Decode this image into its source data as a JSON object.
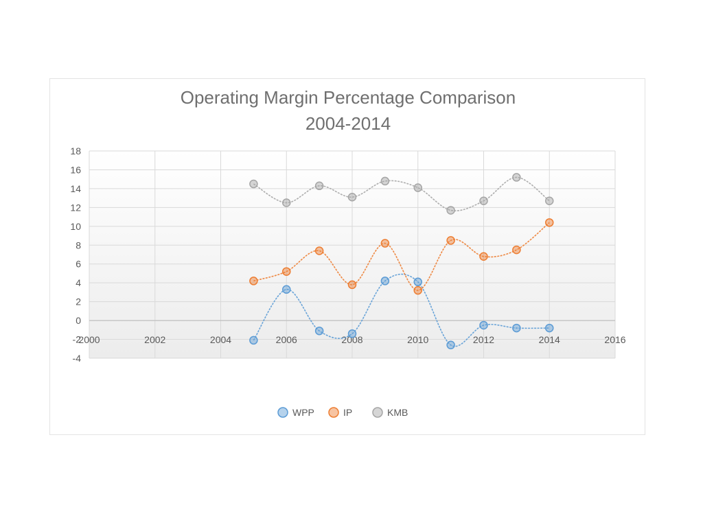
{
  "chart_data": {
    "type": "scatter",
    "title_line1": "Operating Margin Percentage Comparison",
    "title_line2": "2004-2014",
    "xlabel": "",
    "ylabel": "",
    "xlim": [
      2000,
      2016
    ],
    "ylim": [
      -4,
      18
    ],
    "x_ticks": [
      2000,
      2002,
      2004,
      2006,
      2008,
      2010,
      2012,
      2014,
      2016
    ],
    "y_ticks": [
      -4,
      -2,
      0,
      2,
      4,
      6,
      8,
      10,
      12,
      14,
      16,
      18
    ],
    "grid": true,
    "smoothed": true,
    "legend_position": "bottom",
    "series": [
      {
        "name": "WPP",
        "color": "#5b9bd5",
        "x": [
          2005,
          2006,
          2007,
          2008,
          2009,
          2010,
          2011,
          2012,
          2013,
          2014
        ],
        "y": [
          -2.1,
          3.3,
          -1.1,
          -1.4,
          4.2,
          4.1,
          -2.6,
          -0.5,
          -0.8,
          -0.8
        ]
      },
      {
        "name": "IP",
        "color": "#ed7d31",
        "x": [
          2005,
          2006,
          2007,
          2008,
          2009,
          2010,
          2011,
          2012,
          2013,
          2014
        ],
        "y": [
          4.2,
          5.2,
          7.4,
          3.8,
          8.2,
          3.2,
          8.5,
          6.8,
          7.5,
          10.4
        ]
      },
      {
        "name": "KMB",
        "color": "#a5a5a5",
        "x": [
          2005,
          2006,
          2007,
          2008,
          2009,
          2010,
          2011,
          2012,
          2013,
          2014
        ],
        "y": [
          14.5,
          12.5,
          14.3,
          13.1,
          14.8,
          14.1,
          11.7,
          12.7,
          15.2,
          12.7
        ]
      }
    ]
  }
}
